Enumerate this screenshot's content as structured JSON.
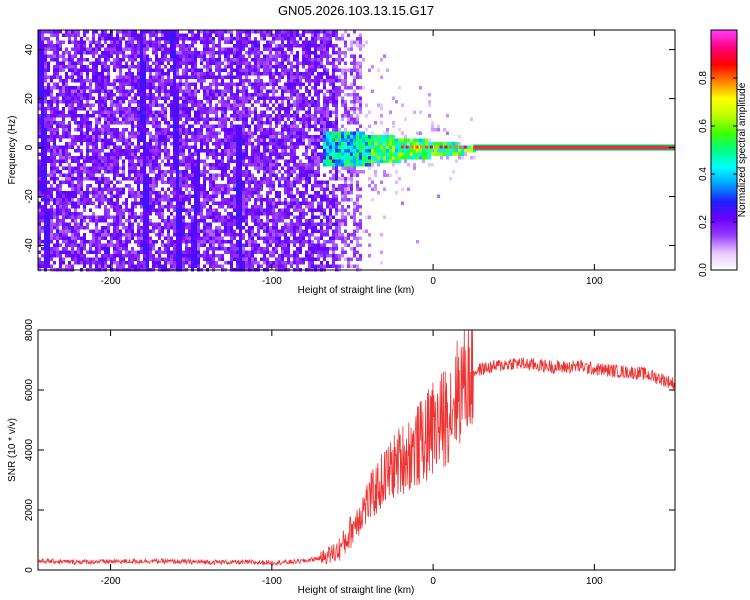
{
  "figure": {
    "title": "GN05.2026.103.13.15.G17"
  },
  "chart_data": [
    {
      "type": "heatmap",
      "xlabel": "Height of straight line (km)",
      "ylabel": "Frequency (Hz)",
      "xlim": [
        -245,
        150
      ],
      "ylim": [
        -50,
        48
      ],
      "xticks": [
        -200,
        -100,
        0,
        100
      ],
      "yticks": [
        -40,
        -20,
        0,
        20,
        40
      ],
      "colorbar": {
        "label": "Normalized spectral amplitude",
        "range": [
          0,
          1
        ],
        "ticks": [
          0.0,
          0.2,
          0.4,
          0.6,
          0.8
        ],
        "tick_labels": [
          "0.0",
          "0.2",
          "0.4",
          "0.6",
          "0.8"
        ],
        "colors": [
          "#ffffff",
          "#e8c8ff",
          "#9a3cff",
          "#6a00ff",
          "#2020ff",
          "#00a0ff",
          "#00ffff",
          "#00ff80",
          "#40ff00",
          "#c0ff00",
          "#ffff00",
          "#ff8000",
          "#ff0000",
          "#ff0080",
          "#ff40ff"
        ]
      },
      "features": [
        {
          "name": "broadband noise",
          "x_range": [
            -245,
            -50
          ],
          "freq_range": [
            -50,
            48
          ],
          "amplitude": 0.1
        },
        {
          "name": "carrier",
          "x_range": [
            -70,
            150
          ],
          "freq_center": 0,
          "amplitude": 1.0
        }
      ]
    },
    {
      "type": "line",
      "xlabel": "Height of straight line (km)",
      "ylabel": "SNR (10 * v/v)",
      "xlim": [
        -245,
        150
      ],
      "ylim": [
        0,
        8000
      ],
      "xticks": [
        -200,
        -100,
        0,
        100
      ],
      "yticks": [
        0,
        2000,
        4000,
        6000,
        8000
      ],
      "color": "#ee3333",
      "series": [
        {
          "x": [
            -245,
            -225,
            -200,
            -175,
            -150,
            -125,
            -100,
            -90,
            -80,
            -70,
            -60,
            -55,
            -50,
            -45,
            -40,
            -35,
            -30,
            -25,
            -20,
            -15,
            -10,
            -5,
            0,
            5,
            10,
            15,
            20,
            25,
            30,
            40,
            50,
            60,
            70,
            80,
            90,
            100,
            110,
            120,
            130,
            140,
            150
          ],
          "y": [
            300,
            270,
            280,
            300,
            270,
            260,
            250,
            260,
            300,
            400,
            600,
            900,
            1400,
            1900,
            2300,
            2700,
            3100,
            3400,
            3700,
            3900,
            4100,
            4400,
            4600,
            4900,
            5400,
            5900,
            6400,
            6600,
            6700,
            6800,
            6900,
            6850,
            6800,
            6750,
            6800,
            6700,
            6650,
            6600,
            6550,
            6400,
            6200
          ]
        }
      ]
    }
  ]
}
